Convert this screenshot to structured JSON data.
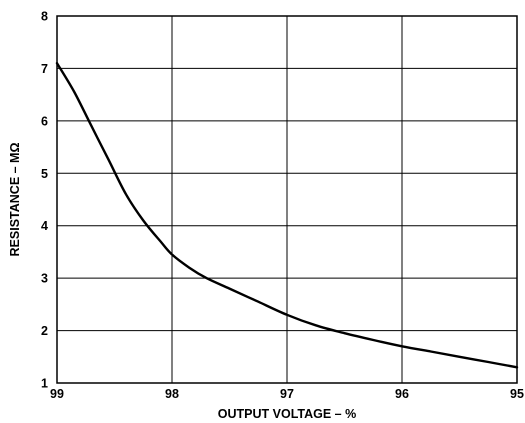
{
  "chart_data": {
    "type": "line",
    "xlabel": "OUTPUT VOLTAGE – %",
    "ylabel": "RESISTANCE – MΩ",
    "xlim": [
      99,
      95
    ],
    "ylim": [
      1,
      8
    ],
    "x_axis_reversed": true,
    "grid": true,
    "xticks": [
      "99",
      "98",
      "97",
      "96",
      "95"
    ],
    "yticks": [
      "1",
      "2",
      "3",
      "4",
      "5",
      "6",
      "7",
      "8"
    ],
    "series": [
      {
        "color": "#000000",
        "x": [
          99.0,
          98.85,
          98.7,
          98.55,
          98.4,
          98.25,
          98.1,
          98.0,
          97.85,
          97.7,
          97.5,
          97.25,
          97.0,
          96.75,
          96.5,
          96.25,
          96.0,
          95.75,
          95.5,
          95.25,
          95.0
        ],
        "y": [
          7.1,
          6.55,
          5.9,
          5.25,
          4.6,
          4.1,
          3.7,
          3.45,
          3.2,
          3.0,
          2.8,
          2.55,
          2.3,
          2.1,
          1.95,
          1.82,
          1.7,
          1.6,
          1.5,
          1.4,
          1.3
        ]
      }
    ]
  }
}
